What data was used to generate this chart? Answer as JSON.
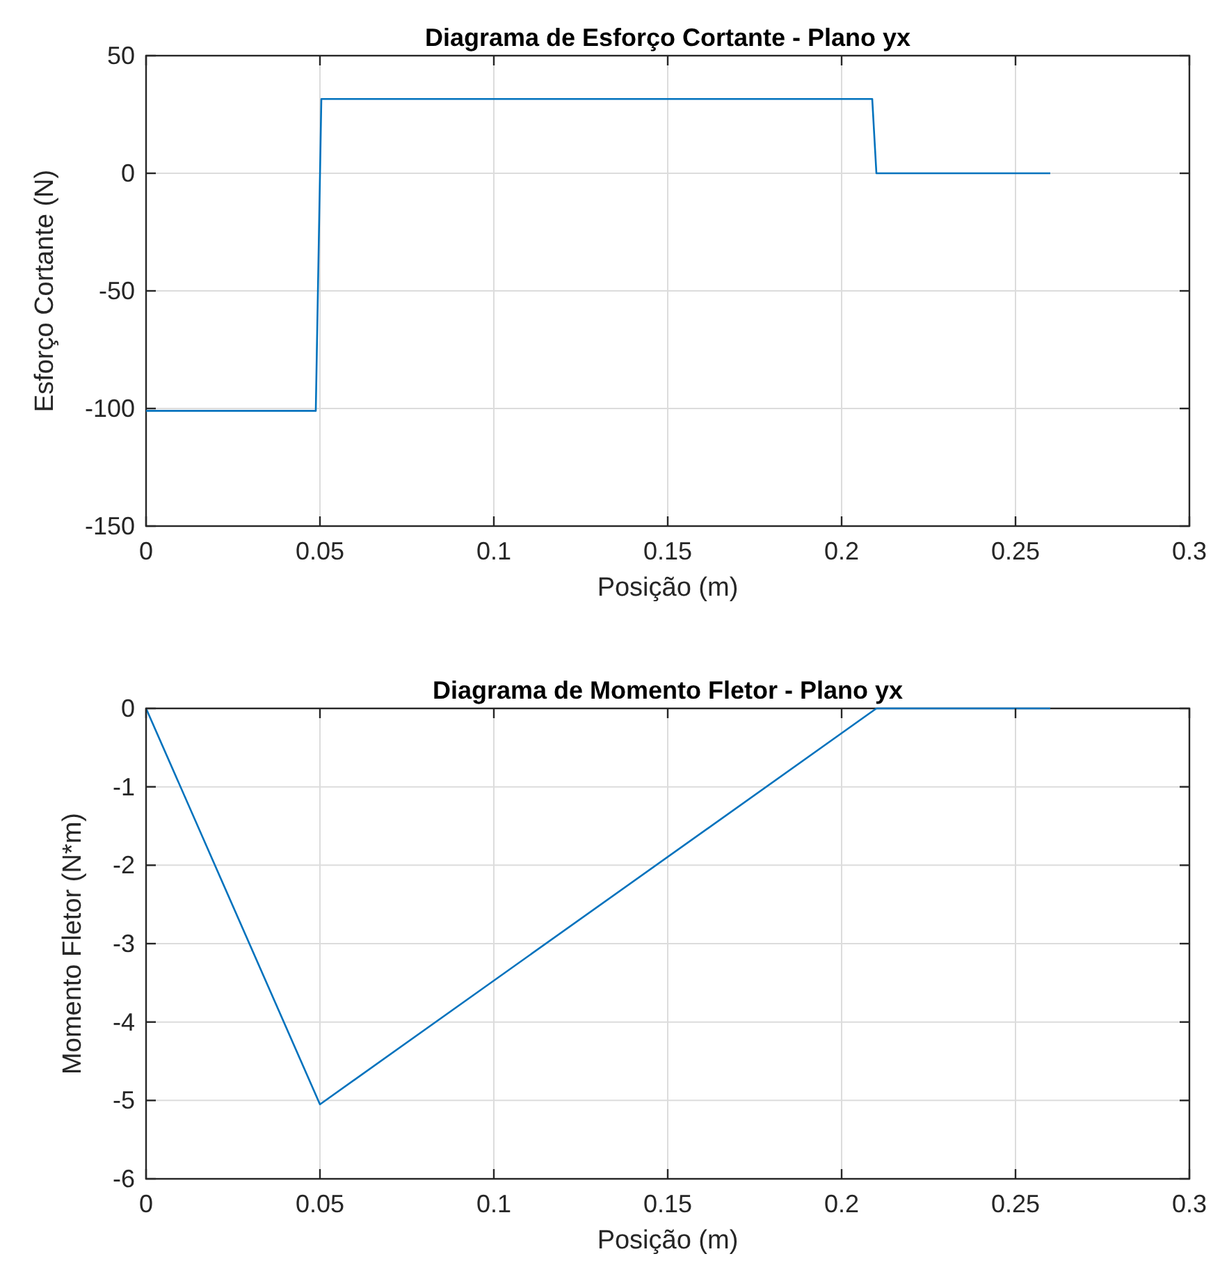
{
  "chart_data": [
    {
      "type": "line",
      "title": "Diagrama de Esforço Cortante - Plano yx",
      "xlabel": "Posição (m)",
      "ylabel": "Esforço Cortante (N)",
      "x": [
        0,
        0.0488,
        0.0504,
        0.2088,
        0.21,
        0.26
      ],
      "series": [
        {
          "color": "#0072bd",
          "values": [
            -101,
            -101,
            31.6,
            31.6,
            0,
            0
          ]
        }
      ],
      "xlim": [
        0,
        0.3
      ],
      "xticks": [
        0,
        0.05,
        0.1,
        0.15,
        0.2,
        0.25,
        0.3
      ],
      "ylim": [
        -150,
        50
      ],
      "yticks": [
        -150,
        -100,
        -50,
        0,
        50
      ],
      "grid": true,
      "marker": "none",
      "line_style": "solid"
    },
    {
      "type": "line",
      "title": "Diagrama de Momento Fletor - Plano yx",
      "xlabel": "Posição (m)",
      "ylabel": "Momento Fletor (N*m)",
      "x": [
        0,
        0.05,
        0.21,
        0.26
      ],
      "series": [
        {
          "color": "#0072bd",
          "values": [
            0,
            -5.05,
            0,
            0
          ]
        }
      ],
      "xlim": [
        0,
        0.3
      ],
      "xticks": [
        0,
        0.05,
        0.1,
        0.15,
        0.2,
        0.25,
        0.3
      ],
      "ylim": [
        -6,
        0
      ],
      "yticks": [
        -6,
        -5,
        -4,
        -3,
        -2,
        -1,
        0
      ],
      "grid": true,
      "marker": "none",
      "line_style": "solid"
    }
  ]
}
